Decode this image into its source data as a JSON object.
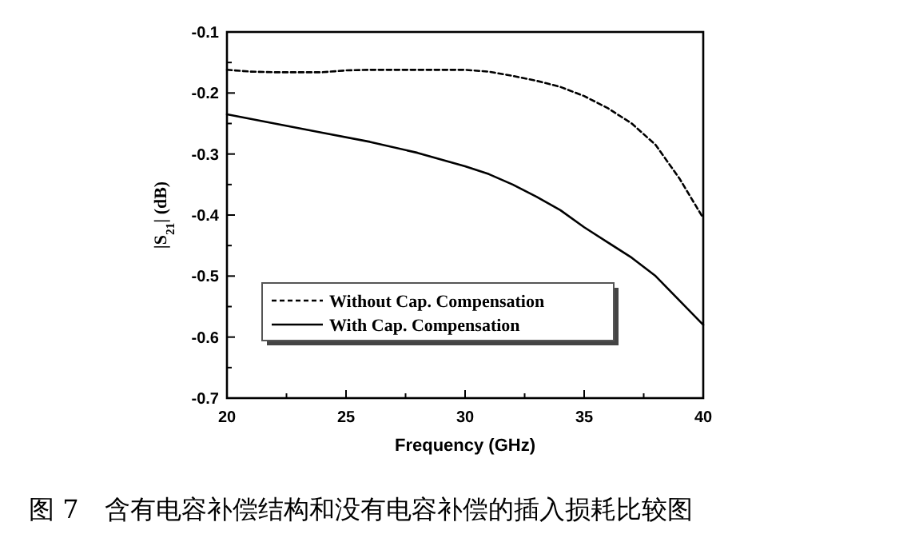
{
  "chart_data": {
    "type": "line",
    "xlabel": "Frequency (GHz)",
    "ylabel": "|S$_{21}$| (dB)",
    "annotations": [
      "图 7　含有电容补偿结构和没有电容补偿的插入损耗比较图"
    ],
    "xlim": [
      20,
      40
    ],
    "xticks": [
      20,
      25,
      30,
      35,
      40
    ],
    "ylim": [
      -0.7,
      -0.1
    ],
    "yticks": [
      -0.7,
      -0.6,
      -0.5,
      -0.4,
      -0.3,
      -0.2,
      -0.1
    ],
    "legend": "bottom left",
    "grid": false,
    "marker": "none",
    "series": [
      {
        "name": "Without Cap. Compensation",
        "color": "#000000",
        "line_style": "dashed",
        "x": [
          20,
          21,
          22,
          23,
          24,
          25,
          26,
          27,
          28,
          29,
          30,
          31,
          32,
          33,
          34,
          35,
          36,
          37,
          38,
          39,
          40
        ],
        "values": [
          -0.162,
          -0.165,
          -0.166,
          -0.166,
          -0.166,
          -0.163,
          -0.162,
          -0.162,
          -0.162,
          -0.162,
          -0.162,
          -0.165,
          -0.172,
          -0.18,
          -0.19,
          -0.205,
          -0.225,
          -0.25,
          -0.285,
          -0.34,
          -0.405
        ]
      },
      {
        "name": "With Cap. Compensation",
        "color": "#000000",
        "line_style": "solid",
        "x": [
          20,
          22,
          24,
          26,
          28,
          30,
          31,
          32,
          33,
          34,
          35,
          36,
          37,
          38,
          39,
          40
        ],
        "values": [
          -0.235,
          -0.25,
          -0.265,
          -0.28,
          -0.298,
          -0.32,
          -0.333,
          -0.35,
          -0.37,
          -0.392,
          -0.42,
          -0.445,
          -0.47,
          -0.5,
          -0.54,
          -0.58
        ]
      }
    ]
  }
}
